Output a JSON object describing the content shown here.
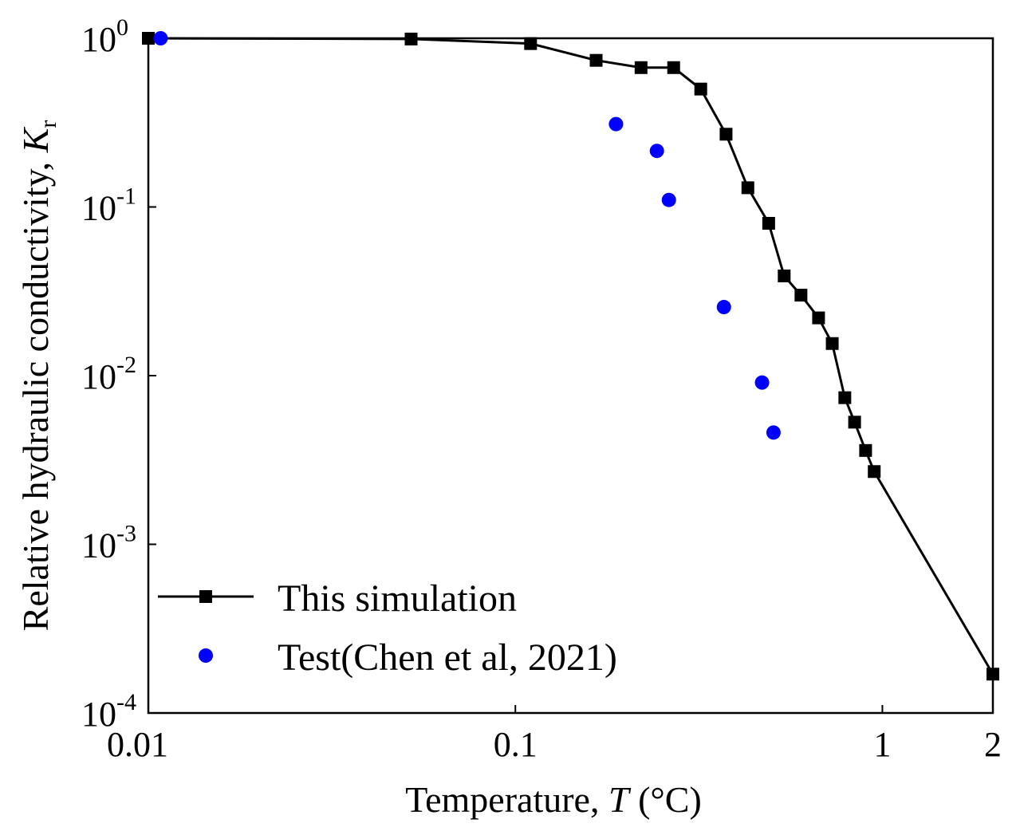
{
  "chart_data": {
    "type": "line",
    "title": "",
    "x_scale": "log",
    "y_scale": "log",
    "xlabel": {
      "prefix": "Temperature, ",
      "symbol": "T",
      "unit": " (°C)"
    },
    "ylabel": {
      "prefix": "Relative hydraulic conductivity, ",
      "symbol": "K",
      "subscript": "r"
    },
    "xlim": [
      0.01,
      2
    ],
    "ylim": [
      0.0001,
      1
    ],
    "x_ticks": [
      {
        "value": 0.01,
        "label": "0.01"
      },
      {
        "value": 0.1,
        "label": "0.1"
      },
      {
        "value": 1,
        "label": "1"
      },
      {
        "value": 2,
        "label": "2"
      }
    ],
    "y_ticks": [
      {
        "value": 1,
        "base": "10",
        "exp": "0"
      },
      {
        "value": 0.1,
        "base": "10",
        "exp": "-1"
      },
      {
        "value": 0.01,
        "base": "10",
        "exp": "-2"
      },
      {
        "value": 0.001,
        "base": "10",
        "exp": "-3"
      },
      {
        "value": 0.0001,
        "base": "10",
        "exp": "-4"
      }
    ],
    "legend_position": "lower-left",
    "series": [
      {
        "name": "This simulation",
        "style": "line-square",
        "color": "#000000",
        "x": [
          0.01,
          0.052,
          0.11,
          0.166,
          0.22,
          0.27,
          0.32,
          0.375,
          0.43,
          0.49,
          0.54,
          0.6,
          0.67,
          0.73,
          0.79,
          0.84,
          0.9,
          0.95,
          2.0
        ],
        "y": [
          1.0,
          0.99,
          0.93,
          0.74,
          0.67,
          0.67,
          0.5,
          0.27,
          0.13,
          0.08,
          0.039,
          0.03,
          0.022,
          0.0155,
          0.0074,
          0.0053,
          0.0036,
          0.0027,
          0.00017
        ]
      },
      {
        "name": "Test(Chen et al, 2021)",
        "style": "scatter-circle",
        "color": "#0000ff",
        "x": [
          0.0108,
          0.188,
          0.243,
          0.262,
          0.37,
          0.47,
          0.505
        ],
        "y": [
          1.0,
          0.31,
          0.215,
          0.11,
          0.0255,
          0.0091,
          0.0046
        ]
      }
    ]
  }
}
